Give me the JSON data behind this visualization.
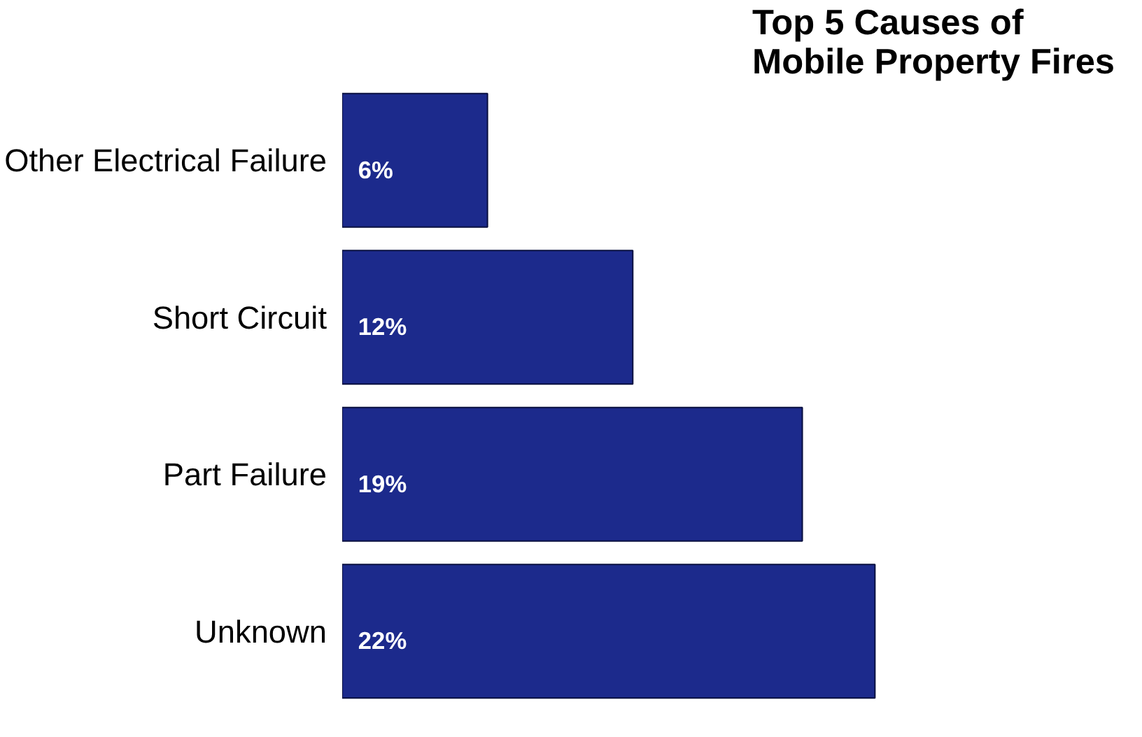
{
  "chart_data": {
    "type": "bar",
    "orientation": "horizontal",
    "title": "Top 5 Causes of\nMobile Property Fires",
    "categories": [
      "Other Electrical Failure",
      "Short Circuit",
      "Part Failure",
      "Unknown"
    ],
    "values": [
      6,
      12,
      19,
      22
    ],
    "color": "#1c2a8c",
    "data_labels": true,
    "value_labels": [
      "6%",
      "12%",
      "19%",
      "22%"
    ],
    "grid": false
  }
}
